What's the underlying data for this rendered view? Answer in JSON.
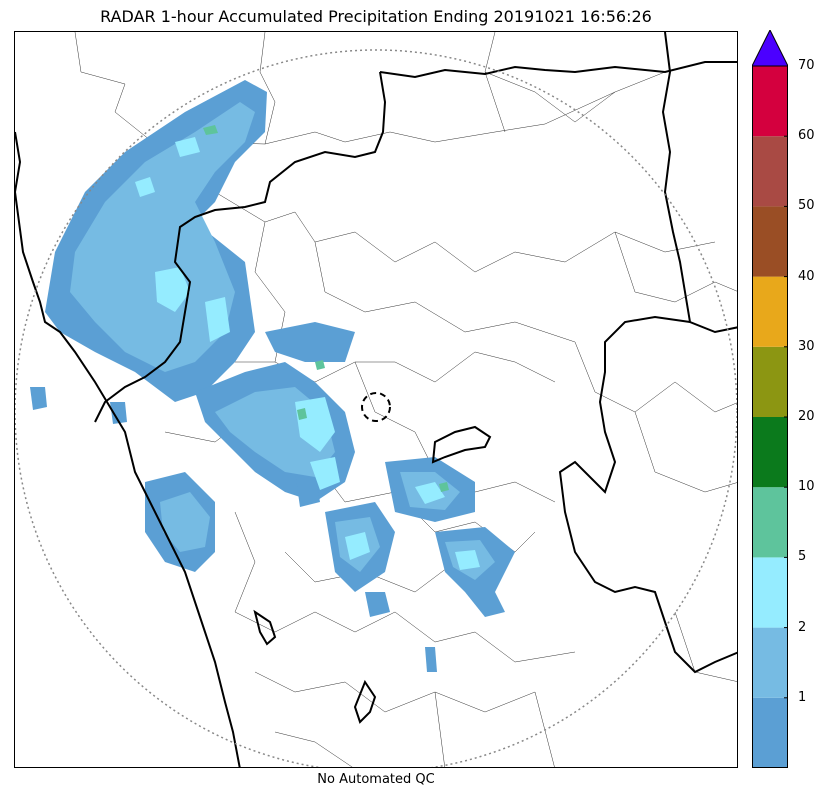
{
  "title": "RADAR 1-hour Accumulated Precipitation Ending 20191021 16:56:26",
  "footer": "No Automated QC",
  "colorbar": {
    "levels": [
      {
        "from": 0,
        "to": 1,
        "color": "#5b9fd4"
      },
      {
        "from": 1,
        "to": 2,
        "color": "#76bbe3"
      },
      {
        "from": 2,
        "to": 5,
        "color": "#95ecff"
      },
      {
        "from": 5,
        "to": 10,
        "color": "#5ec49c"
      },
      {
        "from": 10,
        "to": 20,
        "color": "#0b7a1c"
      },
      {
        "from": 20,
        "to": 30,
        "color": "#8c9612"
      },
      {
        "from": 30,
        "to": 40,
        "color": "#e8a81b"
      },
      {
        "from": 40,
        "to": 50,
        "color": "#9a4e25"
      },
      {
        "from": 50,
        "to": 60,
        "color": "#a94a44"
      },
      {
        "from": 60,
        "to": 70,
        "color": "#d4003e"
      }
    ],
    "extend_color": "#4b00ff",
    "tick_labels": [
      "1",
      "2",
      "5",
      "10",
      "20",
      "30",
      "40",
      "50",
      "60",
      "70"
    ]
  }
}
